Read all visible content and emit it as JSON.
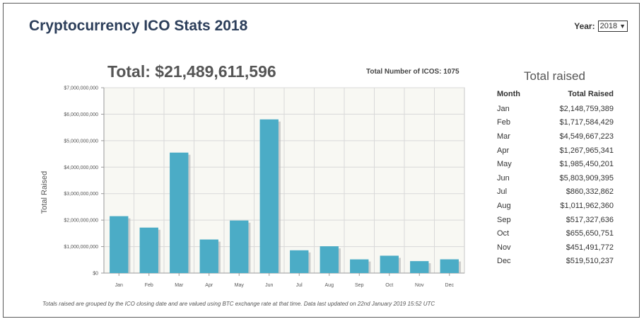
{
  "header": {
    "title": "Cryptocurrency ICO Stats 2018",
    "year_label": "Year:",
    "year_value": "2018"
  },
  "summary": {
    "total": "Total: $21,489,611,596",
    "count": "Total Number of ICOS: 1075"
  },
  "side_table": {
    "title": "Total raised",
    "col_month": "Month",
    "col_total": "Total Raised",
    "rows": [
      {
        "month": "Jan",
        "total": "$2,148,759,389"
      },
      {
        "month": "Feb",
        "total": "$1,717,584,429"
      },
      {
        "month": "Mar",
        "total": "$4,549,667,223"
      },
      {
        "month": "Apr",
        "total": "$1,267,965,341"
      },
      {
        "month": "May",
        "total": "$1,985,450,201"
      },
      {
        "month": "Jun",
        "total": "$5,803,909,395"
      },
      {
        "month": "Jul",
        "total": "$860,332,862"
      },
      {
        "month": "Aug",
        "total": "$1,011,962,360"
      },
      {
        "month": "Sep",
        "total": "$517,327,636"
      },
      {
        "month": "Oct",
        "total": "$655,650,751"
      },
      {
        "month": "Nov",
        "total": "$451,491,772"
      },
      {
        "month": "Dec",
        "total": "$519,510,237"
      }
    ]
  },
  "footnote": "Totals raised are grouped by the ICO closing date and are valued using BTC exchange rate at that time. Data last updated on 22nd January 2019 15:52 UTC",
  "chart_data": {
    "type": "bar",
    "title": "",
    "xlabel": "",
    "ylabel": "Total Raised",
    "categories": [
      "Jan",
      "Feb",
      "Mar",
      "Apr",
      "May",
      "Jun",
      "Jul",
      "Aug",
      "Sep",
      "Oct",
      "Nov",
      "Dec"
    ],
    "values": [
      2148759389,
      1717584429,
      4549667223,
      1267965341,
      1985450201,
      5803909395,
      860332862,
      1011962360,
      517327636,
      655650751,
      451491772,
      519510237
    ],
    "ylim": [
      0,
      7000000000
    ],
    "yticks": [
      0,
      1000000000,
      2000000000,
      3000000000,
      4000000000,
      5000000000,
      6000000000,
      7000000000
    ],
    "ytick_labels": [
      "$0",
      "$1,000,000,000",
      "$2,000,000,000",
      "$3,000,000,000",
      "$4,000,000,000",
      "$5,000,000,000",
      "$6,000,000,000",
      "$7,000,000,000"
    ],
    "grid": true,
    "bar_color": "#4bacc6",
    "shadow_color": "#b9b9b9",
    "grid_color": "#d9d9d9",
    "plot_bg": "#f8f8f3"
  }
}
